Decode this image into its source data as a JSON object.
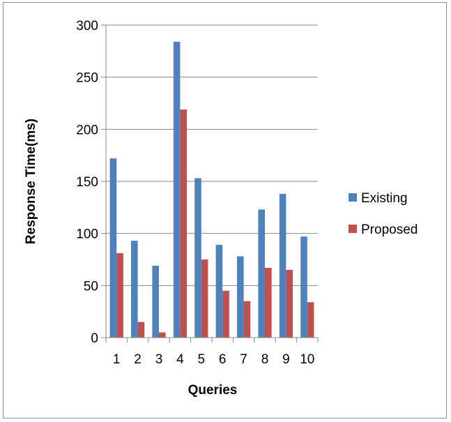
{
  "chart_data": {
    "type": "bar",
    "title": "",
    "xlabel": "Queries",
    "ylabel": "Response Time(ms)",
    "categories": [
      "1",
      "2",
      "3",
      "4",
      "5",
      "6",
      "7",
      "8",
      "9",
      "10"
    ],
    "ylim": [
      0,
      300
    ],
    "yticks": [
      "0",
      "50",
      "100",
      "150",
      "200",
      "250",
      "300"
    ],
    "grid": true,
    "legend_position": "right",
    "series": [
      {
        "name": "Existing",
        "color": "#4f81bd",
        "values": [
          172,
          93,
          69,
          284,
          153,
          89,
          78,
          123,
          138,
          97
        ]
      },
      {
        "name": "Proposed",
        "color": "#c0504d",
        "values": [
          81,
          15,
          5,
          219,
          75,
          45,
          35,
          67,
          65,
          34
        ]
      }
    ]
  }
}
